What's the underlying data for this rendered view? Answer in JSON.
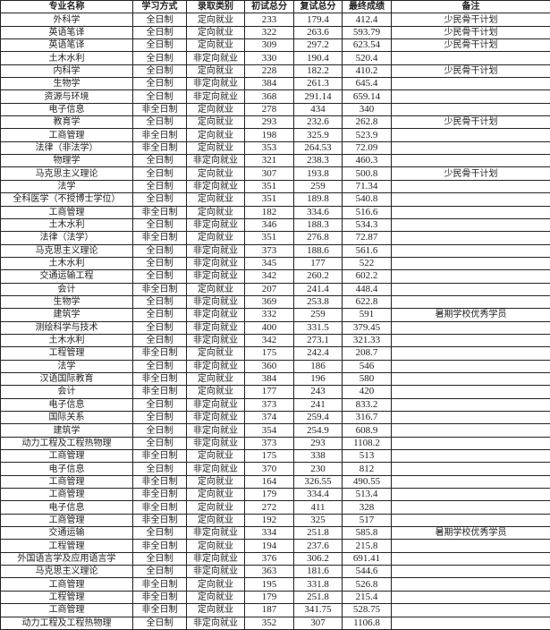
{
  "table": {
    "headers": [
      "专业名称",
      "学习方式",
      "录取类别",
      "初试总分",
      "复试总分",
      "最终成绩",
      "备注"
    ],
    "rows": [
      [
        "外科学",
        "全日制",
        "定向就业",
        "233",
        "179.4",
        "412.4",
        "少民骨干计划"
      ],
      [
        "英语笔译",
        "全日制",
        "定向就业",
        "322",
        "263.6",
        "593.79",
        "少民骨干计划"
      ],
      [
        "英语笔译",
        "全日制",
        "定向就业",
        "309",
        "297.2",
        "623.54",
        "少民骨干计划"
      ],
      [
        "土木水利",
        "全日制",
        "非定向就业",
        "330",
        "190.4",
        "520.4",
        ""
      ],
      [
        "内科学",
        "全日制",
        "定向就业",
        "228",
        "182.2",
        "410.2",
        "少民骨干计划"
      ],
      [
        "生物学",
        "全日制",
        "非定向就业",
        "384",
        "261.3",
        "645.4",
        ""
      ],
      [
        "资源与环境",
        "全日制",
        "非定向就业",
        "368",
        "291.14",
        "659.14",
        ""
      ],
      [
        "电子信息",
        "非全日制",
        "定向就业",
        "278",
        "434",
        "340",
        ""
      ],
      [
        "教育学",
        "全日制",
        "定向就业",
        "293",
        "232.6",
        "262.8",
        "少民骨干计划"
      ],
      [
        "工商管理",
        "非全日制",
        "定向就业",
        "198",
        "325.9",
        "523.9",
        ""
      ],
      [
        "法律（非法学）",
        "非全日制",
        "定向就业",
        "353",
        "264.53",
        "72.09",
        ""
      ],
      [
        "物理学",
        "全日制",
        "非定向就业",
        "321",
        "238.3",
        "460.3",
        ""
      ],
      [
        "马克思主义理论",
        "全日制",
        "定向就业",
        "307",
        "193.8",
        "500.8",
        "少民骨干计划"
      ],
      [
        "法学",
        "全日制",
        "非定向就业",
        "351",
        "259",
        "71.34",
        ""
      ],
      [
        "全科医学（不授博士学位）",
        "全日制",
        "定向就业",
        "351",
        "189.8",
        "540.8",
        ""
      ],
      [
        "工商管理",
        "非全日制",
        "定向就业",
        "182",
        "334.6",
        "516.6",
        ""
      ],
      [
        "土木水利",
        "全日制",
        "非定向就业",
        "346",
        "188.3",
        "534.3",
        ""
      ],
      [
        "法律（法学）",
        "非全日制",
        "定向就业",
        "351",
        "276.8",
        "72.87",
        ""
      ],
      [
        "马克思主义理论",
        "全日制",
        "非定向就业",
        "373",
        "188.6",
        "561.6",
        ""
      ],
      [
        "土木水利",
        "全日制",
        "非定向就业",
        "345",
        "177",
        "522",
        ""
      ],
      [
        "交通运输工程",
        "全日制",
        "非定向就业",
        "342",
        "260.2",
        "602.2",
        ""
      ],
      [
        "会计",
        "非全日制",
        "定向就业",
        "207",
        "241.4",
        "448.4",
        ""
      ],
      [
        "生物学",
        "全日制",
        "非定向就业",
        "369",
        "253.8",
        "622.8",
        ""
      ],
      [
        "建筑学",
        "全日制",
        "非定向就业",
        "332",
        "259",
        "591",
        "暑期学校优秀学员"
      ],
      [
        "测绘科学与技术",
        "全日制",
        "非定向就业",
        "400",
        "331.5",
        "379.45",
        ""
      ],
      [
        "土木水利",
        "全日制",
        "非定向就业",
        "342",
        "273.1",
        "321.33",
        ""
      ],
      [
        "工程管理",
        "非全日制",
        "定向就业",
        "175",
        "242.4",
        "208.7",
        ""
      ],
      [
        "法学",
        "全日制",
        "非定向就业",
        "360",
        "186",
        "546",
        ""
      ],
      [
        "汉语国际教育",
        "非全日制",
        "定向就业",
        "384",
        "196",
        "580",
        ""
      ],
      [
        "会计",
        "非全日制",
        "定向就业",
        "177",
        "243",
        "420",
        ""
      ],
      [
        "电子信息",
        "全日制",
        "非定向就业",
        "373",
        "241",
        "833.2",
        ""
      ],
      [
        "国际关系",
        "全日制",
        "非定向就业",
        "374",
        "259.4",
        "316.7",
        ""
      ],
      [
        "建筑学",
        "全日制",
        "非定向就业",
        "354",
        "254.9",
        "608.9",
        ""
      ],
      [
        "动力工程及工程热物理",
        "全日制",
        "非定向就业",
        "373",
        "293",
        "1108.2",
        ""
      ],
      [
        "工商管理",
        "非全日制",
        "定向就业",
        "175",
        "338",
        "513",
        ""
      ],
      [
        "电子信息",
        "全日制",
        "非定向就业",
        "370",
        "230",
        "812",
        ""
      ],
      [
        "工商管理",
        "非全日制",
        "定向就业",
        "164",
        "326.55",
        "490.55",
        ""
      ],
      [
        "工商管理",
        "非全日制",
        "定向就业",
        "179",
        "334.4",
        "513.4",
        ""
      ],
      [
        "电子信息",
        "非全日制",
        "定向就业",
        "272",
        "411",
        "328",
        ""
      ],
      [
        "工商管理",
        "非全日制",
        "定向就业",
        "192",
        "325",
        "517",
        ""
      ],
      [
        "交通运输",
        "全日制",
        "非定向就业",
        "334",
        "251.8",
        "585.8",
        "暑期学校优秀学员"
      ],
      [
        "工程管理",
        "非全日制",
        "定向就业",
        "194",
        "237.6",
        "215.8",
        ""
      ],
      [
        "外国语言学及应用语言学",
        "全日制",
        "非定向就业",
        "376",
        "306.2",
        "691.41",
        ""
      ],
      [
        "马克思主义理论",
        "全日制",
        "非定向就业",
        "363",
        "181.6",
        "544.6",
        ""
      ],
      [
        "工商管理",
        "非全日制",
        "定向就业",
        "195",
        "331.8",
        "526.8",
        ""
      ],
      [
        "工程管理",
        "非全日制",
        "定向就业",
        "179",
        "251.8",
        "215.4",
        ""
      ],
      [
        "工商管理",
        "非全日制",
        "定向就业",
        "187",
        "341.75",
        "528.75",
        ""
      ],
      [
        "动力工程及工程热物理",
        "全日制",
        "非定向就业",
        "352",
        "307",
        "1106.8",
        ""
      ]
    ]
  }
}
